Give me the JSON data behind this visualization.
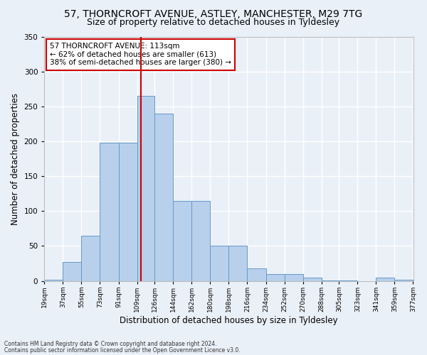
{
  "title1": "57, THORNCROFT AVENUE, ASTLEY, MANCHESTER, M29 7TG",
  "title2": "Size of property relative to detached houses in Tyldesley",
  "xlabel": "Distribution of detached houses by size in Tyldesley",
  "ylabel": "Number of detached properties",
  "bin_edges": [
    19,
    37,
    55,
    73,
    91,
    109,
    126,
    144,
    162,
    180,
    198,
    216,
    234,
    252,
    270,
    288,
    305,
    323,
    341,
    359,
    377
  ],
  "bar_heights": [
    2,
    27,
    65,
    198,
    198,
    265,
    240,
    115,
    115,
    50,
    50,
    18,
    10,
    10,
    5,
    1,
    1,
    0,
    5,
    2
  ],
  "bar_color": "#b8d0eb",
  "bar_edge_color": "#6699cc",
  "vline_x": 113,
  "vline_color": "#cc0000",
  "annotation_text": "57 THORNCROFT AVENUE: 113sqm\n← 62% of detached houses are smaller (613)\n38% of semi-detached houses are larger (380) →",
  "annotation_box_color": "white",
  "annotation_box_edge": "#cc0000",
  "ylim": [
    0,
    350
  ],
  "yticks": [
    0,
    50,
    100,
    150,
    200,
    250,
    300,
    350
  ],
  "tick_labels": [
    "19sqm",
    "37sqm",
    "55sqm",
    "73sqm",
    "91sqm",
    "109sqm",
    "126sqm",
    "144sqm",
    "162sqm",
    "180sqm",
    "198sqm",
    "216sqm",
    "234sqm",
    "252sqm",
    "270sqm",
    "288sqm",
    "305sqm",
    "323sqm",
    "341sqm",
    "359sqm",
    "377sqm"
  ],
  "footer1": "Contains HM Land Registry data © Crown copyright and database right 2024.",
  "footer2": "Contains public sector information licensed under the Open Government Licence v3.0.",
  "bg_color": "#eaf0f8",
  "plot_bg_color": "#eaf0f8",
  "grid_color": "#ffffff",
  "title1_fontsize": 10,
  "title2_fontsize": 9,
  "xlabel_fontsize": 8.5,
  "ylabel_fontsize": 8.5,
  "annotation_fontsize": 7.5
}
